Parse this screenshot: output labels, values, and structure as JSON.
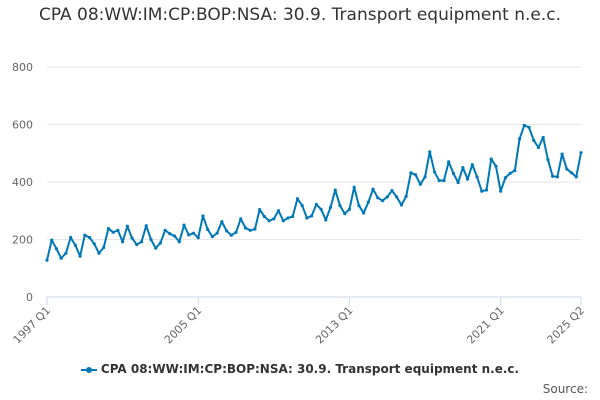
{
  "chart_data": {
    "type": "line",
    "title": "CPA 08:WW:IM:CP:BOP:NSA: 30.9. Transport equipment n.e.c.",
    "xlabel": "",
    "ylabel": "",
    "ylim": [
      0,
      800
    ],
    "y_ticks": [
      0,
      200,
      400,
      600,
      800
    ],
    "x_tick_labels": [
      "1997 Q1",
      "2005 Q1",
      "2013 Q1",
      "2021 Q1",
      "2025 Q2"
    ],
    "grid": true,
    "legend_position": "bottom",
    "credits": "Source:",
    "x": [
      "1997 Q1",
      "1997 Q2",
      "1997 Q3",
      "1997 Q4",
      "1998 Q1",
      "1998 Q2",
      "1998 Q3",
      "1998 Q4",
      "1999 Q1",
      "1999 Q2",
      "1999 Q3",
      "1999 Q4",
      "2000 Q1",
      "2000 Q2",
      "2000 Q3",
      "2000 Q4",
      "2001 Q1",
      "2001 Q2",
      "2001 Q3",
      "2001 Q4",
      "2002 Q1",
      "2002 Q2",
      "2002 Q3",
      "2002 Q4",
      "2003 Q1",
      "2003 Q2",
      "2003 Q3",
      "2003 Q4",
      "2004 Q1",
      "2004 Q2",
      "2004 Q3",
      "2004 Q4",
      "2005 Q1",
      "2005 Q2",
      "2005 Q3",
      "2005 Q4",
      "2006 Q1",
      "2006 Q2",
      "2006 Q3",
      "2006 Q4",
      "2007 Q1",
      "2007 Q2",
      "2007 Q3",
      "2007 Q4",
      "2008 Q1",
      "2008 Q2",
      "2008 Q3",
      "2008 Q4",
      "2009 Q1",
      "2009 Q2",
      "2009 Q3",
      "2009 Q4",
      "2010 Q1",
      "2010 Q2",
      "2010 Q3",
      "2010 Q4",
      "2011 Q1",
      "2011 Q2",
      "2011 Q3",
      "2011 Q4",
      "2012 Q1",
      "2012 Q2",
      "2012 Q3",
      "2012 Q4",
      "2013 Q1",
      "2013 Q2",
      "2013 Q3",
      "2013 Q4",
      "2014 Q1",
      "2014 Q2",
      "2014 Q3",
      "2014 Q4",
      "2015 Q1",
      "2015 Q2",
      "2015 Q3",
      "2015 Q4",
      "2016 Q1",
      "2016 Q2",
      "2016 Q3",
      "2016 Q4",
      "2017 Q1",
      "2017 Q2",
      "2017 Q3",
      "2017 Q4",
      "2018 Q1",
      "2018 Q2",
      "2018 Q3",
      "2018 Q4",
      "2019 Q1",
      "2019 Q2",
      "2019 Q3",
      "2019 Q4",
      "2020 Q1",
      "2020 Q2",
      "2020 Q3",
      "2020 Q4",
      "2021 Q1",
      "2021 Q2",
      "2021 Q3",
      "2021 Q4",
      "2022 Q1",
      "2022 Q2",
      "2022 Q3",
      "2022 Q4",
      "2023 Q1",
      "2023 Q2",
      "2023 Q3",
      "2023 Q4",
      "2024 Q1",
      "2024 Q2",
      "2024 Q3",
      "2024 Q4",
      "2025 Q1",
      "2025 Q2"
    ],
    "series": [
      {
        "name": "CPA 08:WW:IM:CP:BOP:NSA: 30.9. Transport equipment n.e.c.",
        "color": "#0077b6",
        "values": [
          128,
          198,
          168,
          135,
          152,
          207,
          180,
          142,
          215,
          207,
          185,
          152,
          172,
          238,
          225,
          232,
          192,
          246,
          205,
          182,
          192,
          248,
          200,
          170,
          188,
          232,
          220,
          212,
          192,
          250,
          216,
          222,
          206,
          282,
          235,
          210,
          222,
          262,
          230,
          215,
          225,
          272,
          240,
          232,
          236,
          304,
          280,
          265,
          272,
          300,
          265,
          275,
          280,
          342,
          318,
          275,
          282,
          322,
          305,
          268,
          312,
          372,
          318,
          290,
          305,
          382,
          318,
          292,
          330,
          375,
          345,
          335,
          348,
          370,
          348,
          320,
          350,
          432,
          425,
          392,
          418,
          505,
          435,
          405,
          405,
          470,
          430,
          398,
          450,
          410,
          460,
          418,
          368,
          372,
          480,
          455,
          368,
          415,
          430,
          440,
          550,
          597,
          590,
          545,
          520,
          555,
          478,
          420,
          418,
          497,
          445,
          432,
          418,
          502
        ]
      }
    ]
  }
}
